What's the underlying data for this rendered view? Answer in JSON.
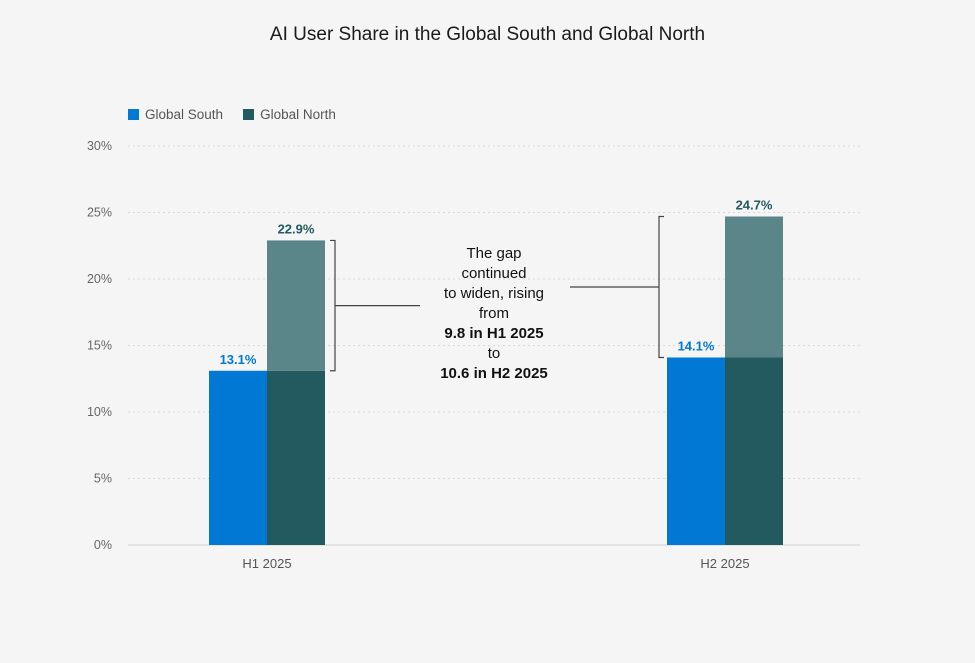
{
  "chart_data": {
    "type": "bar",
    "title": "AI User Share in the Global South and Global North",
    "categories": [
      "H1 2025",
      "H2 2025"
    ],
    "series": [
      {
        "name": "Global South",
        "color": "#0078d4",
        "values": [
          13.1,
          14.1
        ],
        "labels": [
          "13.1%",
          "14.1%"
        ]
      },
      {
        "name": "Global North",
        "color": "#225a5f",
        "values": [
          22.9,
          24.7
        ],
        "labels": [
          "22.9%",
          "24.7%"
        ]
      }
    ],
    "gap_color": "#5a8589",
    "ylim": [
      0,
      30
    ],
    "yticks": [
      0,
      5,
      10,
      15,
      20,
      25,
      30
    ],
    "ytick_labels": [
      "0%",
      "5%",
      "10%",
      "15%",
      "20%",
      "25%",
      "30%"
    ],
    "grid": true,
    "legend_position": "top-left",
    "annotation": {
      "line1": "The gap",
      "line2": "continued",
      "line3": "to widen, rising",
      "line4": "from",
      "line5": "9.8 in H1 2025",
      "line6": "to",
      "line7": "10.6 in H2 2025"
    }
  }
}
